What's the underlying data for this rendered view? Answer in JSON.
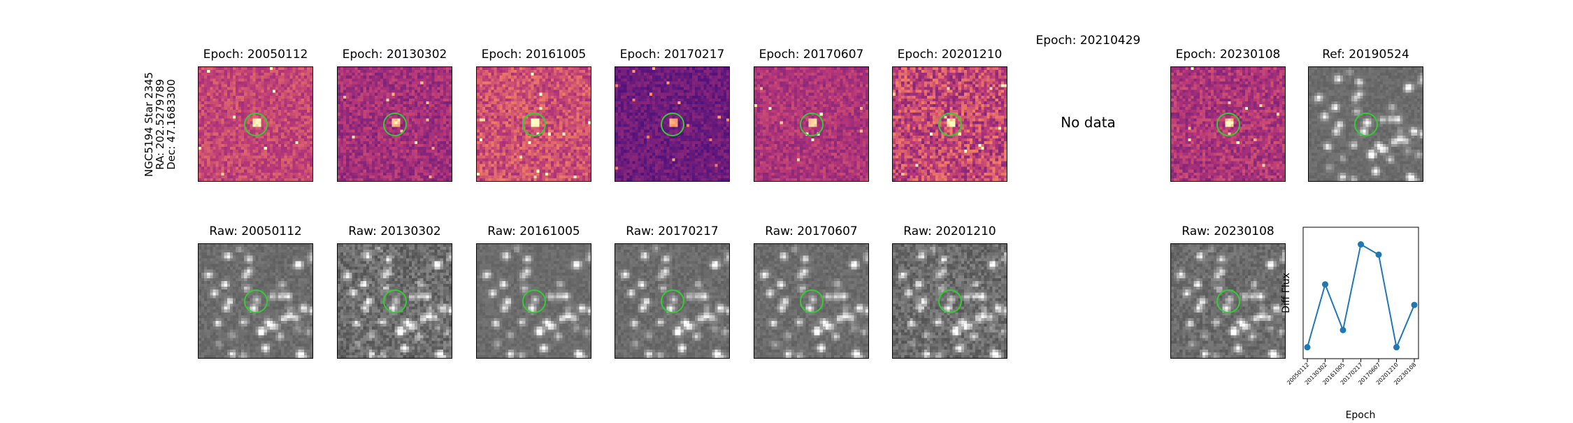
{
  "star_info": {
    "name": "NGC5194 Star 2345",
    "ra": "RA: 202.5279789",
    "dec": "Dec: 47.1683300"
  },
  "diff_panels": [
    {
      "title": "Epoch: 20050112",
      "has_data": true
    },
    {
      "title": "Epoch: 20130302",
      "has_data": true
    },
    {
      "title": "Epoch: 20161005",
      "has_data": true
    },
    {
      "title": "Epoch: 20170217",
      "has_data": true
    },
    {
      "title": "Epoch: 20170607",
      "has_data": true
    },
    {
      "title": "Epoch: 20201210",
      "has_data": true
    },
    {
      "title": "Epoch: 20210429",
      "has_data": false,
      "no_data_text": "No data"
    },
    {
      "title": "Epoch: 20230108",
      "has_data": true
    }
  ],
  "ref_panel": {
    "title": "Ref: 20190524"
  },
  "raw_panels": [
    {
      "title": "Raw: 20050112"
    },
    {
      "title": "Raw: 20130302"
    },
    {
      "title": "Raw: 20161005"
    },
    {
      "title": "Raw: 20170217"
    },
    {
      "title": "Raw: 20170607"
    },
    {
      "title": "Raw: 20201210"
    },
    {
      "title": "Raw: 20230108"
    }
  ],
  "colors": {
    "marker": "#32cd32",
    "line": "#1f77b4"
  },
  "chart_data": {
    "type": "line",
    "xlabel": "Epoch",
    "ylabel": "Diff Flux",
    "categories": [
      "20050112",
      "20130302",
      "20161005",
      "20170217",
      "20170607",
      "20201210",
      "20230108"
    ],
    "values": [
      0.05,
      0.6,
      0.2,
      0.95,
      0.86,
      0.05,
      0.42
    ],
    "ylim": [
      -0.05,
      1.1
    ],
    "grid": false,
    "legend": "none"
  }
}
